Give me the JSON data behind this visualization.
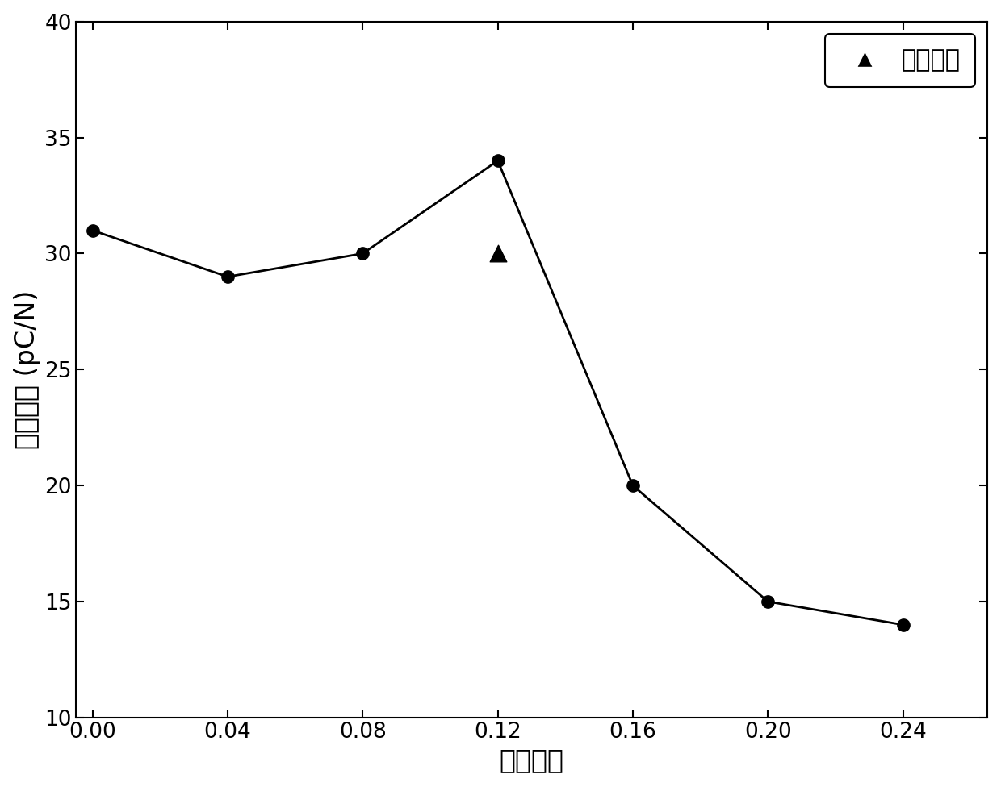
{
  "line_x": [
    0.0,
    0.04,
    0.08,
    0.12,
    0.16,
    0.2,
    0.24
  ],
  "line_y": [
    31.0,
    29.0,
    30.0,
    34.0,
    20.0,
    15.0,
    14.0
  ],
  "triangle_x": [
    0.12
  ],
  "triangle_y": [
    30.0
  ],
  "xlabel": "缺铋程度",
  "ylabel": "压电系数 (pC/N)",
  "xlim": [
    -0.005,
    0.265
  ],
  "ylim": [
    10,
    40
  ],
  "yticks": [
    10,
    15,
    20,
    25,
    30,
    35,
    40
  ],
  "xticks": [
    0.0,
    0.04,
    0.08,
    0.12,
    0.16,
    0.2,
    0.24
  ],
  "xtick_labels": [
    "0.00",
    "0.04",
    "0.08",
    "0.12",
    "0.16",
    "0.20",
    "0.24"
  ],
  "legend_label": "混合样品",
  "line_color": "#000000",
  "marker_color": "#000000",
  "background_color": "#ffffff",
  "font_size_axis_label": 24,
  "font_size_tick": 19,
  "font_size_legend": 22,
  "line_width": 2.0,
  "marker_size": 11,
  "triangle_size": 220
}
